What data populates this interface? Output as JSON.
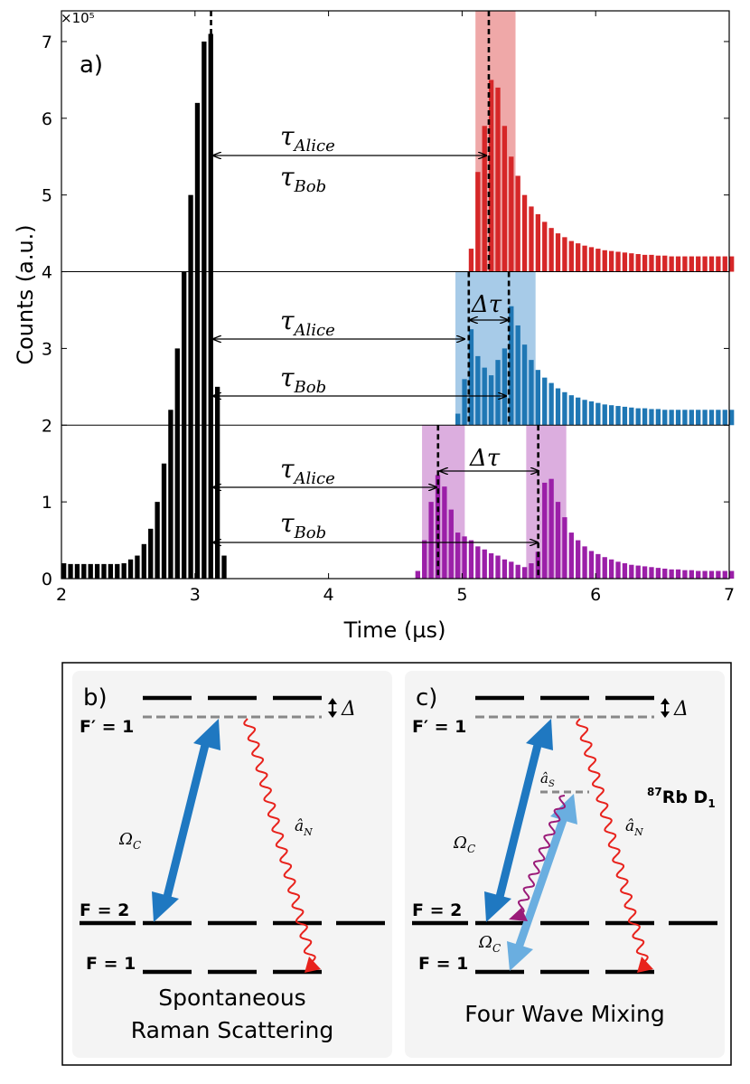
{
  "chart_data": {
    "type": "bar",
    "panel_label": "a)",
    "xlabel": "Time (µs)",
    "ylabel": "Counts (a.u.)",
    "xlim": [
      2,
      7
    ],
    "ylim": [
      0,
      7.4
    ],
    "y_exponent": "×10⁵",
    "xticks": [
      2,
      3,
      4,
      5,
      6,
      7
    ],
    "yticks": [
      0,
      1,
      2,
      3,
      4,
      5,
      6,
      7
    ],
    "colors": {
      "control": "#000000",
      "red": "#d62728",
      "blue": "#1f77b4",
      "purple": "#9b1fa8",
      "red_band": "#efa8a8",
      "blue_band": "#a7cbe8",
      "purple_band": "#dcaedf"
    },
    "bin_width": 0.05,
    "control_pulse": {
      "name": "control",
      "x": [
        2.0,
        2.05,
        2.1,
        2.15,
        2.2,
        2.25,
        2.3,
        2.35,
        2.4,
        2.45,
        2.5,
        2.55,
        2.6,
        2.65,
        2.7,
        2.75,
        2.8,
        2.85,
        2.9,
        2.95,
        3.0,
        3.05,
        3.1,
        3.15,
        3.2
      ],
      "values": [
        0.2,
        0.19,
        0.19,
        0.19,
        0.19,
        0.19,
        0.19,
        0.19,
        0.19,
        0.2,
        0.25,
        0.3,
        0.45,
        0.65,
        1.0,
        1.5,
        2.2,
        3.0,
        4.0,
        5.0,
        6.2,
        7.0,
        7.1,
        2.5,
        0.3
      ]
    },
    "series": [
      {
        "name": "red",
        "baseline": 4,
        "x": [
          5.05,
          5.1,
          5.15,
          5.2,
          5.25,
          5.3,
          5.35,
          5.4,
          5.45,
          5.5,
          5.55,
          5.6,
          5.65,
          5.7,
          5.75,
          5.8,
          5.85,
          5.9,
          5.95,
          6.0,
          6.05,
          6.1,
          6.15,
          6.2,
          6.25,
          6.3,
          6.35,
          6.4,
          6.45,
          6.5,
          6.55,
          6.6,
          6.65,
          6.7,
          6.75,
          6.8,
          6.85,
          6.9,
          6.95,
          7.0
        ],
        "values": [
          0.3,
          1.3,
          1.9,
          2.5,
          2.4,
          1.9,
          1.5,
          1.25,
          1.0,
          0.85,
          0.75,
          0.65,
          0.57,
          0.5,
          0.45,
          0.4,
          0.37,
          0.34,
          0.32,
          0.3,
          0.28,
          0.27,
          0.26,
          0.25,
          0.24,
          0.23,
          0.22,
          0.22,
          0.21,
          0.21,
          0.2,
          0.2,
          0.2,
          0.2,
          0.2,
          0.2,
          0.2,
          0.2,
          0.2,
          0.2
        ]
      },
      {
        "name": "blue",
        "baseline": 2,
        "x": [
          4.95,
          5.0,
          5.05,
          5.1,
          5.15,
          5.2,
          5.25,
          5.3,
          5.35,
          5.4,
          5.45,
          5.5,
          5.55,
          5.6,
          5.65,
          5.7,
          5.75,
          5.8,
          5.85,
          5.9,
          5.95,
          6.0,
          6.05,
          6.1,
          6.15,
          6.2,
          6.25,
          6.3,
          6.35,
          6.4,
          6.45,
          6.5,
          6.55,
          6.6,
          6.65,
          6.7,
          6.75,
          6.8,
          6.85,
          6.9,
          6.95,
          7.0
        ],
        "values": [
          0.15,
          0.6,
          1.25,
          0.9,
          0.75,
          0.65,
          0.85,
          1.0,
          1.55,
          1.3,
          1.05,
          0.85,
          0.72,
          0.62,
          0.55,
          0.48,
          0.43,
          0.39,
          0.36,
          0.33,
          0.31,
          0.29,
          0.27,
          0.26,
          0.25,
          0.24,
          0.23,
          0.22,
          0.22,
          0.21,
          0.21,
          0.2,
          0.2,
          0.2,
          0.2,
          0.2,
          0.2,
          0.2,
          0.2,
          0.2,
          0.2,
          0.2
        ]
      },
      {
        "name": "purple",
        "baseline": 0,
        "x": [
          4.65,
          4.7,
          4.75,
          4.8,
          4.85,
          4.9,
          4.95,
          5.0,
          5.05,
          5.1,
          5.15,
          5.2,
          5.25,
          5.3,
          5.35,
          5.4,
          5.45,
          5.5,
          5.55,
          5.6,
          5.65,
          5.7,
          5.75,
          5.8,
          5.85,
          5.9,
          5.95,
          6.0,
          6.05,
          6.1,
          6.15,
          6.2,
          6.25,
          6.3,
          6.35,
          6.4,
          6.45,
          6.5,
          6.55,
          6.6,
          6.65,
          6.7,
          6.75,
          6.8,
          6.85,
          6.9,
          6.95,
          7.0
        ],
        "values": [
          0.1,
          0.5,
          1.0,
          1.35,
          1.2,
          0.9,
          0.6,
          0.55,
          0.5,
          0.42,
          0.38,
          0.33,
          0.3,
          0.25,
          0.22,
          0.18,
          0.15,
          0.2,
          0.35,
          1.25,
          1.3,
          1.0,
          0.8,
          0.6,
          0.5,
          0.42,
          0.36,
          0.32,
          0.28,
          0.25,
          0.22,
          0.2,
          0.18,
          0.17,
          0.16,
          0.15,
          0.14,
          0.13,
          0.12,
          0.12,
          0.11,
          0.11,
          0.1,
          0.1,
          0.1,
          0.1,
          0.1,
          0.1
        ]
      }
    ],
    "bands": [
      {
        "color": "red",
        "x0": 5.1,
        "x1": 5.4,
        "y0": 4,
        "y1": 7.4
      },
      {
        "color": "blue",
        "x0": 4.95,
        "x1": 5.55,
        "y0": 2,
        "y1": 4
      },
      {
        "color": "purple",
        "x0": 4.7,
        "x1": 5.02,
        "y0": 0,
        "y1": 2
      },
      {
        "color": "purple",
        "x0": 5.48,
        "x1": 5.78,
        "y0": 0,
        "y1": 2
      }
    ],
    "dashed_lines": [
      {
        "x": 3.12,
        "y0": 0,
        "y1": 7.4
      },
      {
        "x": 5.2,
        "y0": 4,
        "y1": 7.4
      },
      {
        "x": 5.05,
        "y0": 2,
        "y1": 4
      },
      {
        "x": 5.35,
        "y0": 2,
        "y1": 4
      },
      {
        "x": 4.82,
        "y0": 0,
        "y1": 2
      },
      {
        "x": 5.57,
        "y0": 0,
        "y1": 2
      }
    ],
    "separators": [
      2,
      4
    ],
    "annotations": {
      "tau_alice": "τ",
      "tau_alice_sub": "Alice",
      "tau_bob": "τ",
      "tau_bob_sub": "Bob",
      "delta_tau": "Δτ"
    }
  },
  "panel_b": {
    "label": "b)",
    "level_excited": "F′ = 1",
    "level_f2": "F = 2",
    "level_f1": "F = 1",
    "delta": "Δ",
    "omega_c": "Ω",
    "omega_c_sub": "C",
    "a_n": "â",
    "a_n_sub": "N",
    "caption_line1": "Spontaneous",
    "caption_line2": "Raman Scattering"
  },
  "panel_c": {
    "label": "c)",
    "level_excited": "F′ = 1",
    "level_f2": "F = 2",
    "level_f1": "F = 1",
    "delta": "Δ",
    "omega_c_upper": "Ω",
    "omega_c_upper_sub": "C",
    "omega_c_lower": "Ω",
    "omega_c_lower_sub": "C",
    "a_s": "â",
    "a_s_sub": "S",
    "a_n": "â",
    "a_n_sub": "N",
    "atom_sup": "87",
    "atom_label": "Rb D",
    "atom_sub": "1",
    "caption": "Four Wave Mixing",
    "colors": {
      "arrow_dark": "#1f78c1",
      "arrow_light": "#6aaee0",
      "wave_red": "#e8221c",
      "wave_purple": "#9a1a78"
    }
  }
}
